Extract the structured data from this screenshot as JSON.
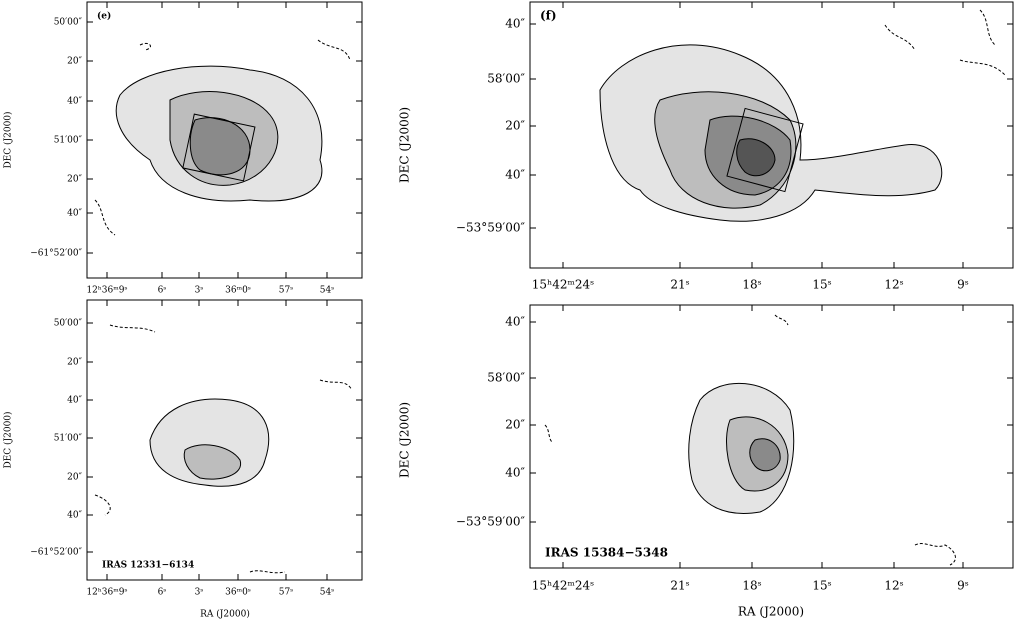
{
  "figure": {
    "panels": [
      {
        "label": "(e)",
        "yticks": [
          "50′00″",
          "20″",
          "40″",
          "51′00″",
          "20″",
          "40″",
          "−61°52′00″"
        ],
        "xticks": [
          "12ʰ36ᵐ9ˢ",
          "6ˢ",
          "3ˢ",
          "36ᵐ0ˢ",
          "57ˢ",
          "54ˢ"
        ],
        "ylabel": "DEC (J2000)"
      },
      {
        "source": "IRAS 12331−6134",
        "yticks": [
          "50′00″",
          "20″",
          "40″",
          "51′00″",
          "20″",
          "40″",
          "−61°52′00″"
        ],
        "xticks": [
          "12ʰ36ᵐ9ˢ",
          "6ˢ",
          "3ˢ",
          "36ᵐ0ˢ",
          "57ˢ",
          "54ˢ"
        ],
        "ylabel": "DEC (J2000)",
        "xlabel": "RA (J2000)"
      },
      {
        "label": "(f)",
        "yticks": [
          "40″",
          "58′00″",
          "20″",
          "40″",
          "−53°59′00″"
        ],
        "xticks": [
          "15ʰ42ᵐ24ˢ",
          "21ˢ",
          "18ˢ",
          "15ˢ",
          "12ˢ",
          "9ˢ"
        ],
        "ylabel": "DEC (J2000)"
      },
      {
        "source": "IRAS 15384−5348",
        "yticks": [
          "40″",
          "58′00″",
          "20″",
          "40″",
          "−53°59′00″"
        ],
        "xticks": [
          "15ʰ42ᵐ24ˢ",
          "21ˢ",
          "18ˢ",
          "15ˢ",
          "12ˢ",
          "9ˢ"
        ],
        "ylabel": "DEC (J2000)",
        "xlabel": "RA (J2000)"
      }
    ]
  }
}
